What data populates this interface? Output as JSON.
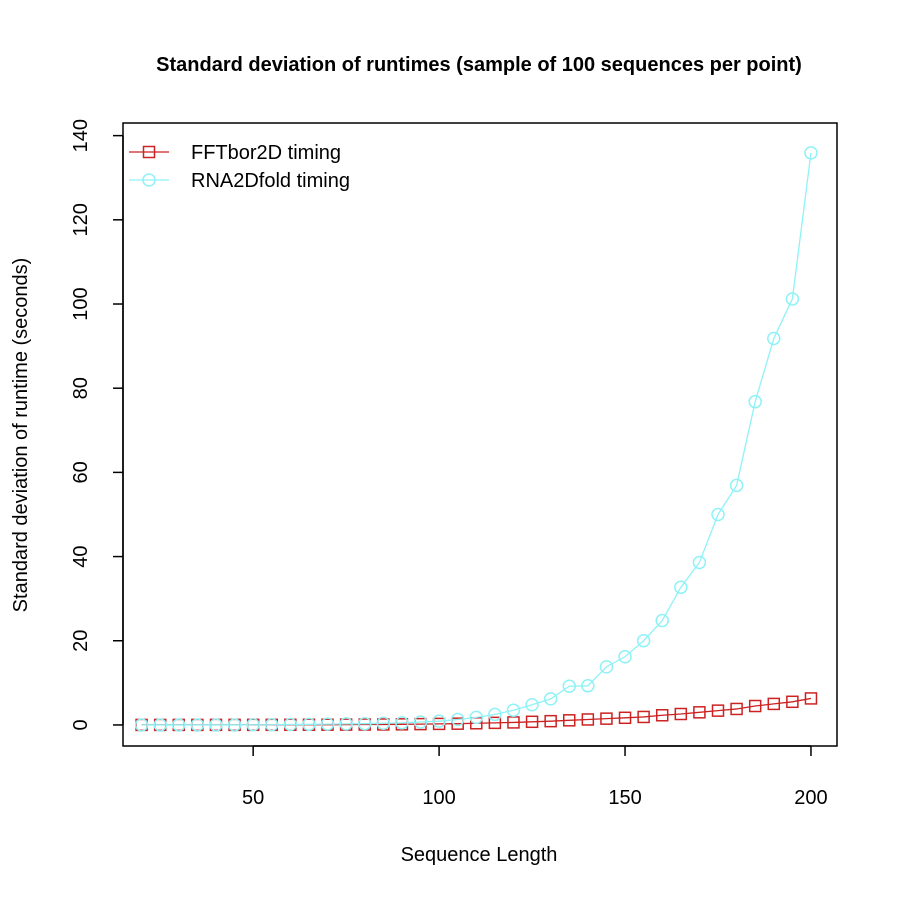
{
  "chart_data": {
    "type": "line",
    "title": "Standard deviation of runtimes (sample of 100 sequences per point)",
    "xlabel": "Sequence Length",
    "ylabel": "Standard deviation of runtime (seconds)",
    "xlim": [
      15,
      207
    ],
    "ylim": [
      -5,
      143
    ],
    "xticks": [
      50,
      100,
      150,
      200
    ],
    "yticks": [
      0,
      20,
      40,
      60,
      80,
      100,
      120,
      140
    ],
    "grid": false,
    "legend_position": "top-left",
    "x": [
      20,
      25,
      30,
      35,
      40,
      45,
      50,
      55,
      60,
      65,
      70,
      75,
      80,
      85,
      90,
      95,
      100,
      105,
      110,
      115,
      120,
      125,
      130,
      135,
      140,
      145,
      150,
      155,
      160,
      165,
      170,
      175,
      180,
      185,
      190,
      195,
      200
    ],
    "series": [
      {
        "name": "FFTbor2D timing",
        "color": "#cc2222",
        "marker": "square",
        "values": [
          0.01,
          0.01,
          0.01,
          0.01,
          0.02,
          0.02,
          0.03,
          0.03,
          0.04,
          0.05,
          0.06,
          0.08,
          0.1,
          0.12,
          0.15,
          0.2,
          0.25,
          0.3,
          0.4,
          0.5,
          0.6,
          0.75,
          0.9,
          1.1,
          1.3,
          1.5,
          1.7,
          1.9,
          2.3,
          2.6,
          3.0,
          3.4,
          3.8,
          4.5,
          5.0,
          5.5,
          6.3
        ]
      },
      {
        "name": "RNA2Dfold timing",
        "color": "#8ff2f7",
        "marker": "circle",
        "values": [
          0.0,
          0.0,
          0.0,
          0.0,
          0.0,
          0.0,
          0.05,
          0.05,
          0.1,
          0.15,
          0.2,
          0.25,
          0.3,
          0.4,
          0.5,
          0.7,
          0.9,
          1.3,
          1.8,
          2.5,
          3.5,
          4.8,
          6.2,
          9.2,
          9.3,
          13.8,
          16.2,
          20.0,
          24.8,
          32.7,
          38.6,
          50.0,
          56.9,
          76.8,
          91.8,
          101.2,
          135.9
        ]
      }
    ]
  }
}
